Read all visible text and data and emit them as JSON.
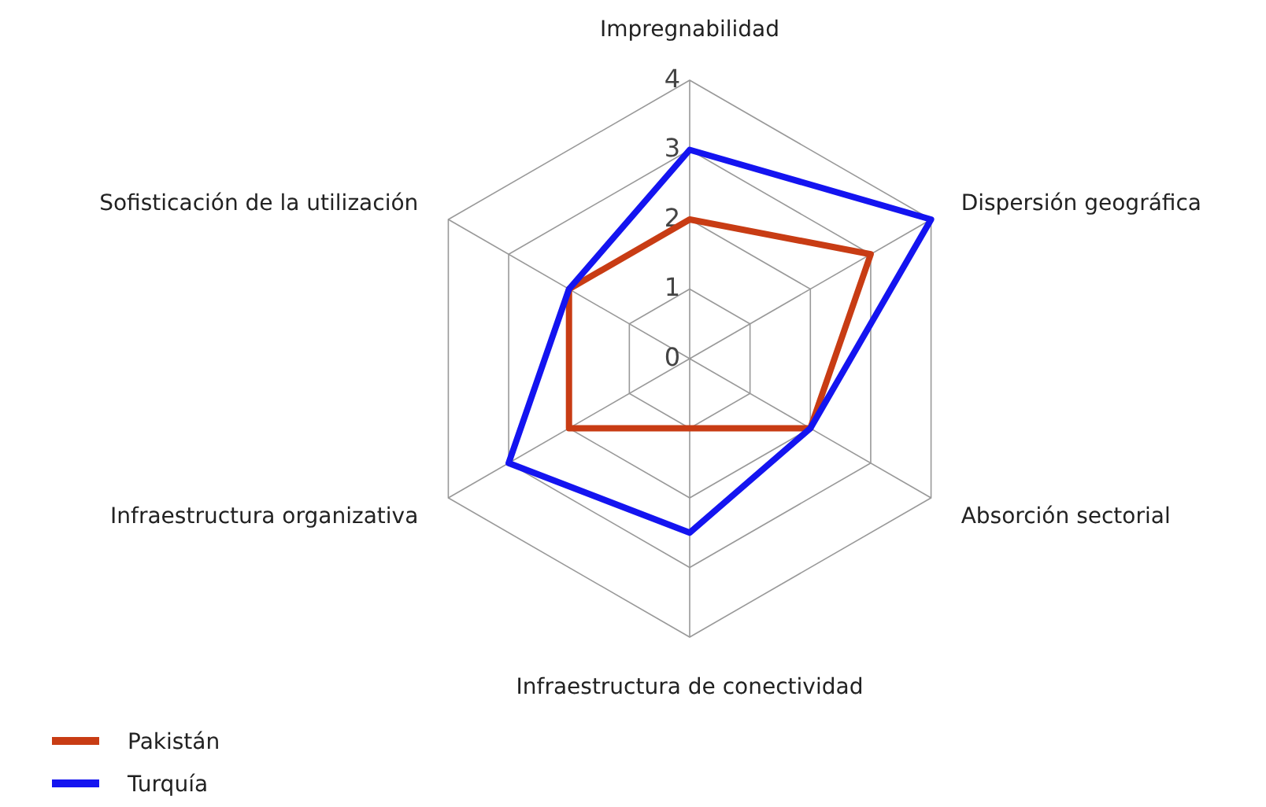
{
  "chart_data": {
    "type": "radar",
    "categories": [
      "Impregnabilidad",
      "Dispersión geográfica",
      "Absorción sectorial",
      "Infraestructura de conectividad",
      "Infraestructura organizativa",
      "Sofisticación de la utilización"
    ],
    "series": [
      {
        "name": "Pakistán",
        "color": "#c83c14",
        "values": [
          2,
          3,
          2,
          1,
          2,
          2
        ]
      },
      {
        "name": "Turquía",
        "color": "#1414f0",
        "values": [
          3,
          4,
          2,
          2.5,
          3,
          2
        ]
      }
    ],
    "ylim": [
      0,
      4
    ],
    "yticks": [
      0,
      1,
      2,
      3,
      4
    ],
    "grid": true,
    "legend": "bottom left"
  }
}
